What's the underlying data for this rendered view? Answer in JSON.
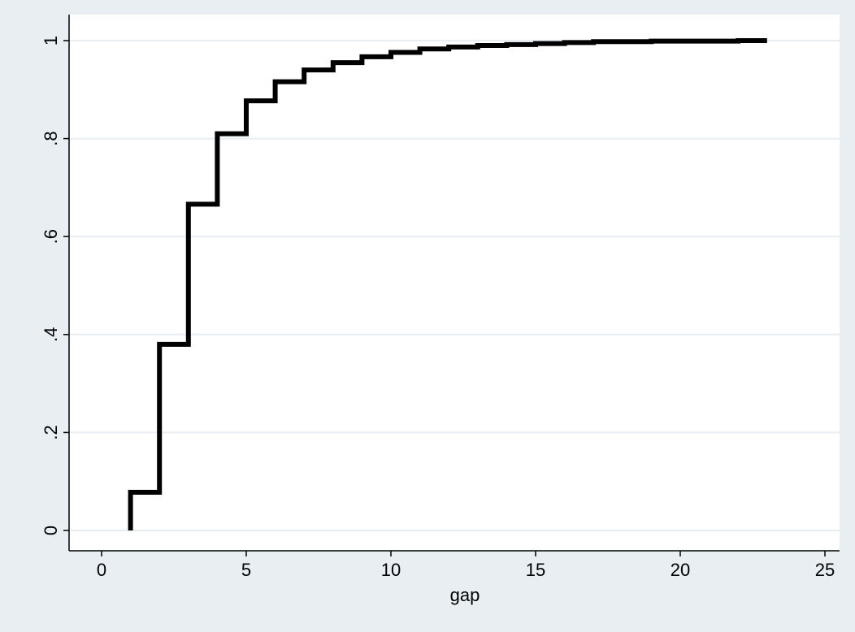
{
  "chart_data": {
    "type": "line",
    "step": true,
    "title": "",
    "xlabel": "gap",
    "ylabel": "",
    "xlim": [
      0,
      25
    ],
    "ylim": [
      0,
      1
    ],
    "xticks": [
      0,
      5,
      10,
      15,
      20,
      25
    ],
    "yticks": [
      0,
      0.2,
      0.4,
      0.6,
      0.8,
      1
    ],
    "xtick_labels": [
      "0",
      "5",
      "10",
      "15",
      "20",
      "25"
    ],
    "ytick_labels": [
      "0",
      ".2",
      ".4",
      ".6",
      ".8",
      "1"
    ],
    "grid": "horizontal",
    "series": [
      {
        "color": "#000000",
        "x": [
          1,
          2,
          3,
          4,
          5,
          6,
          7,
          8,
          9,
          10,
          11,
          12,
          13,
          14,
          15,
          16,
          17,
          18,
          19,
          20,
          21,
          22,
          23
        ],
        "y": [
          0.078,
          0.38,
          0.666,
          0.81,
          0.877,
          0.916,
          0.94,
          0.955,
          0.967,
          0.976,
          0.983,
          0.987,
          0.99,
          0.992,
          0.994,
          0.996,
          0.998,
          0.998,
          0.999,
          0.999,
          0.999,
          1.0,
          1.0
        ]
      }
    ],
    "colors": {
      "background": "#e8eef2",
      "plot_area": "#ffffff",
      "gridline": "#e8eef2",
      "line": "#000000"
    }
  }
}
